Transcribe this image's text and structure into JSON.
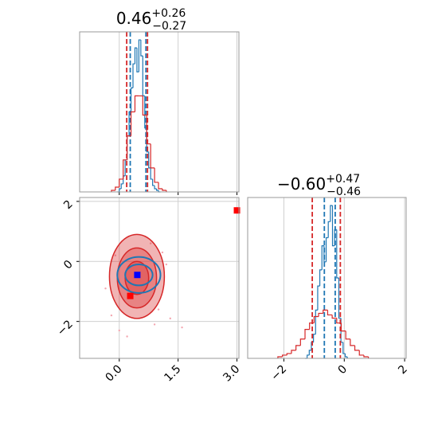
{
  "chart_data": [
    {
      "type": "histogram",
      "title": {
        "value": "0.46",
        "plus": "+0.26",
        "minus": "−0.27"
      },
      "xlim": [
        -1.01,
        3.05
      ],
      "xticks": [
        0,
        1.5,
        3
      ],
      "xtick_labels": false,
      "ylim": [
        0,
        1
      ],
      "grid": true,
      "series": [
        {
          "color": "#1f77b4",
          "bins": [
            -0.05,
            0,
            0.05,
            0.1,
            0.15,
            0.2,
            0.25,
            0.3,
            0.35,
            0.4,
            0.45,
            0.5,
            0.55,
            0.6,
            0.65,
            0.7,
            0.75,
            0.8,
            0.85,
            0.9,
            0.95,
            1.0,
            1.05
          ],
          "values": [
            0,
            0.02,
            0.05,
            0.1,
            0.2,
            0.35,
            0.5,
            0.65,
            0.8,
            0.9,
            0.75,
            0.95,
            0.85,
            0.6,
            0.4,
            0.25,
            0.15,
            0.08,
            0.04,
            0.02,
            0.01,
            0
          ],
          "quantiles": [
            0.28,
            0.68
          ]
        },
        {
          "color": "#d62728",
          "bins": [
            -0.2,
            -0.1,
            0,
            0.1,
            0.2,
            0.3,
            0.4,
            0.5,
            0.6,
            0.7,
            0.8,
            0.9,
            1.0,
            1.1,
            1.2
          ],
          "values": [
            0.01,
            0.03,
            0.08,
            0.2,
            0.35,
            0.5,
            0.6,
            0.6,
            0.48,
            0.3,
            0.15,
            0.06,
            0.02,
            0.01
          ],
          "quantiles": [
            0.19,
            0.72
          ]
        }
      ]
    },
    {
      "type": "scatter",
      "xlim": [
        -1.01,
        3.05
      ],
      "xticks": [
        {
          "value": 0,
          "label": "0.0"
        },
        1.5,
        {
          "value": 3,
          "label": "3.0"
        }
      ],
      "xtick_labels": true,
      "ylim": [
        -3.23,
        2.13
      ],
      "yticks": [
        {
          "value": -2,
          "label": "−2"
        },
        0,
        2
      ],
      "grid": true,
      "points": {
        "color": "#f4a6b0",
        "x": [
          -0.2,
          1.1,
          0.9,
          -0.1,
          1.3,
          0.0,
          0.8,
          1.6,
          -0.35,
          1.0,
          0.2,
          1.2
        ],
        "y": [
          -1.8,
          0.3,
          -2.1,
          0.2,
          -1.9,
          -2.3,
          0.6,
          -2.2,
          -0.9,
          -1.6,
          -2.5,
          -0.1
        ]
      },
      "contours": [
        {
          "color": "#d62728",
          "fill": true,
          "x": 0.45,
          "y": -0.5,
          "rx": 0.7,
          "ry": 1.4
        },
        {
          "color": "#d62728",
          "fill": true,
          "x": 0.45,
          "y": -0.55,
          "rx": 0.5,
          "ry": 1.0
        },
        {
          "color": "#d62728",
          "fill": true,
          "x": 0.45,
          "y": -0.55,
          "rx": 0.3,
          "ry": 0.55
        },
        {
          "color": "#1f77b4",
          "fill": false,
          "x": 0.5,
          "y": -0.45,
          "rx": 0.55,
          "ry": 0.6
        },
        {
          "color": "#1f77b4",
          "fill": false,
          "x": 0.5,
          "y": -0.45,
          "rx": 0.35,
          "ry": 0.35
        }
      ],
      "series": [
        {
          "color": "#ff0000",
          "x": [
            3.0,
            0.28
          ],
          "y": [
            1.7,
            -1.15
          ]
        },
        {
          "color": "#0000ff",
          "x": [
            0.46
          ],
          "y": [
            -0.45
          ]
        }
      ]
    },
    {
      "type": "histogram",
      "title": {
        "value": "−0.60",
        "plus": "+0.47",
        "minus": "−0.46"
      },
      "xlim": [
        -3.2,
        2.05
      ],
      "xticks": [
        {
          "value": -2,
          "label": "−2"
        },
        0,
        2
      ],
      "xtick_labels": true,
      "ylim": [
        0,
        1
      ],
      "grid": true,
      "series": [
        {
          "color": "#1f77b4",
          "bins": [
            -1.3,
            -1.23,
            -1.16,
            -1.09,
            -1.02,
            -0.95,
            -0.88,
            -0.81,
            -0.74,
            -0.67,
            -0.6,
            -0.53,
            -0.46,
            -0.39,
            -0.32,
            -0.25,
            -0.18,
            -0.11,
            -0.04,
            0.03,
            0.1
          ],
          "values": [
            0,
            0.02,
            0.05,
            0.1,
            0.15,
            0.3,
            0.45,
            0.55,
            0.7,
            0.6,
            0.75,
            0.85,
            0.95,
            0.7,
            0.8,
            0.5,
            0.25,
            0.1,
            0.03,
            0.01
          ],
          "quantiles": [
            -0.66,
            -0.3
          ]
        },
        {
          "color": "#d62728",
          "bins": [
            -2.2,
            -2.05,
            -1.9,
            -1.75,
            -1.6,
            -1.45,
            -1.3,
            -1.15,
            -1.0,
            -0.85,
            -0.7,
            -0.55,
            -0.4,
            -0.25,
            -0.1,
            0.05,
            0.2,
            0.35,
            0.5,
            0.65,
            0.8
          ],
          "values": [
            0.01,
            0.02,
            0.03,
            0.05,
            0.08,
            0.12,
            0.18,
            0.22,
            0.26,
            0.28,
            0.3,
            0.27,
            0.25,
            0.22,
            0.17,
            0.12,
            0.08,
            0.05,
            0.02,
            0.01
          ],
          "quantiles": [
            -1.06,
            -0.13
          ]
        }
      ]
    }
  ]
}
